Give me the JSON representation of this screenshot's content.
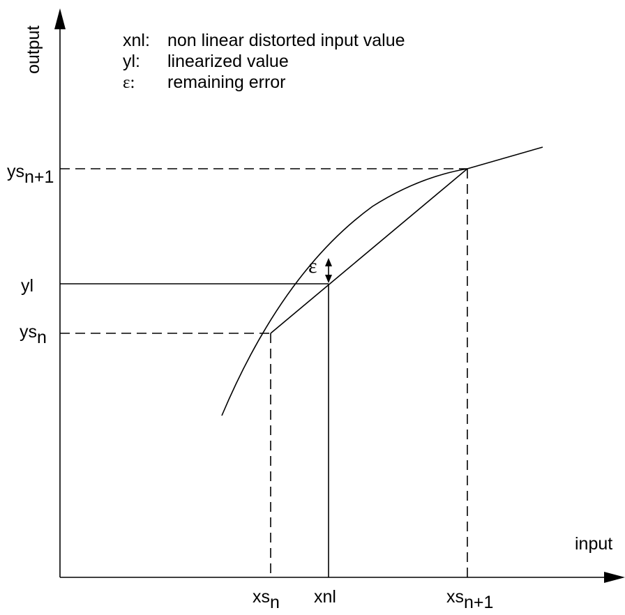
{
  "axes": {
    "x_label": "input",
    "y_label": "output"
  },
  "legend": [
    {
      "key": "xnl:",
      "text": "non linear distorted input value"
    },
    {
      "key": "yl:",
      "text": "linearized value"
    },
    {
      "key": "ε:",
      "text": "remaining error"
    }
  ],
  "y_labels": {
    "ys_n1": {
      "base": "ys",
      "sub": "n+1"
    },
    "yl": "yl",
    "ys_n": {
      "base": "ys",
      "sub": "n"
    }
  },
  "x_labels": {
    "xs_n": {
      "base": "xs",
      "sub": "n"
    },
    "xnl": "xnl",
    "xs_n1": {
      "base": "xs",
      "sub": "n+1"
    }
  },
  "error_symbol": "ε"
}
